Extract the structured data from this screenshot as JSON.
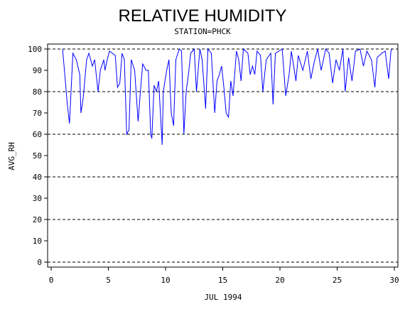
{
  "chart_data": {
    "type": "line",
    "title": "RELATIVE HUMIDITY",
    "subtitle": "STATION=PHCK",
    "xlabel": "JUL 1994",
    "ylabel": "AVG_RH",
    "xlim": [
      0,
      30
    ],
    "xticks": [
      0,
      5,
      10,
      15,
      20,
      25,
      30
    ],
    "ylim": [
      0,
      100
    ],
    "yticks": [
      0,
      10,
      20,
      30,
      40,
      50,
      60,
      70,
      80,
      90,
      100
    ],
    "grid_values": [
      0,
      20,
      40,
      60,
      80,
      100
    ],
    "series": [
      {
        "color": "#0000ff",
        "x": [
          1.0,
          1.4,
          1.6,
          1.9,
          2.2,
          2.5,
          2.6,
          2.8,
          3.1,
          3.3,
          3.6,
          3.8,
          4.1,
          4.3,
          4.6,
          4.7,
          4.9,
          5.1,
          5.6,
          5.8,
          6.0,
          6.2,
          6.4,
          6.6,
          6.8,
          7.0,
          7.3,
          7.6,
          7.8,
          8.0,
          8.3,
          8.5,
          8.7,
          8.8,
          9.0,
          9.2,
          9.4,
          9.7,
          9.8,
          10.1,
          10.3,
          10.5,
          10.7,
          10.9,
          11.2,
          11.4,
          11.6,
          11.8,
          12.0,
          12.2,
          12.5,
          12.7,
          13.0,
          13.2,
          13.5,
          13.7,
          14.0,
          14.3,
          14.5,
          14.7,
          14.9,
          15.1,
          15.3,
          15.5,
          15.7,
          15.9,
          16.2,
          16.4,
          16.6,
          16.8,
          17.2,
          17.4,
          17.6,
          17.8,
          18.0,
          18.3,
          18.5,
          18.8,
          19.2,
          19.4,
          19.6,
          20.2,
          20.5,
          20.8,
          21.0,
          21.4,
          21.6,
          22.0,
          22.4,
          22.7,
          23.0,
          23.3,
          23.6,
          24.0,
          24.3,
          24.6,
          24.9,
          25.2,
          25.5,
          25.7,
          26.0,
          26.3,
          26.6,
          27.0,
          27.3,
          27.6,
          28.0,
          28.3,
          28.5,
          28.9,
          29.2,
          29.5,
          29.7,
          29.8
        ],
        "values": [
          100,
          75,
          65,
          98,
          95,
          88,
          70,
          77,
          95,
          98,
          92,
          95,
          80,
          90,
          95,
          90,
          95,
          99,
          97,
          82,
          84,
          98,
          95,
          60,
          62,
          95,
          90,
          66,
          80,
          93,
          90,
          90,
          60,
          58,
          83,
          80,
          85,
          55,
          80,
          90,
          95,
          70,
          64,
          95,
          100,
          99,
          60,
          80,
          88,
          98,
          100,
          80,
          100,
          95,
          72,
          100,
          98,
          70,
          85,
          88,
          92,
          82,
          70,
          68,
          85,
          78,
          99,
          95,
          85,
          100,
          98,
          88,
          92,
          88,
          99,
          97,
          80,
          95,
          98,
          74,
          98,
          100,
          78,
          88,
          99,
          85,
          97,
          90,
          99,
          86,
          94,
          100,
          90,
          100,
          98,
          84,
          95,
          90,
          100,
          80,
          96,
          85,
          99,
          100,
          92,
          99,
          95,
          82,
          96,
          98,
          99,
          86,
          99,
          100
        ]
      }
    ]
  }
}
